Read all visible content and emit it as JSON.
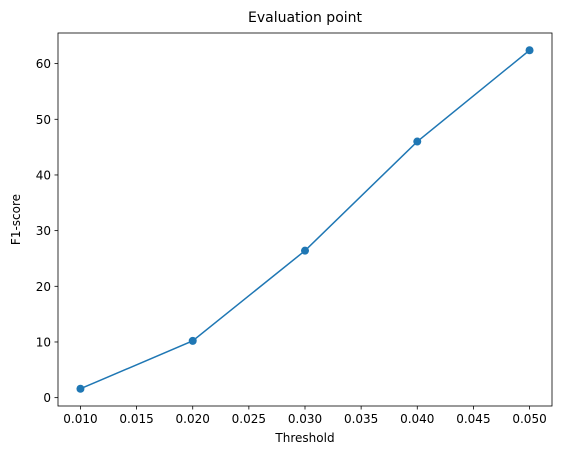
{
  "chart_data": {
    "type": "line",
    "title": "Evaluation point",
    "xlabel": "Threshold",
    "ylabel": "F1-score",
    "x": [
      0.01,
      0.02,
      0.03,
      0.04,
      0.05
    ],
    "series": [
      {
        "values": [
          1.6,
          10.2,
          26.4,
          46.0,
          62.4
        ],
        "color": "#1f77b4",
        "marker": "circle"
      }
    ],
    "xlim": [
      0.008,
      0.052
    ],
    "ylim": [
      -1.5,
      65.5
    ],
    "xticks": [
      0.01,
      0.015,
      0.02,
      0.025,
      0.03,
      0.035,
      0.04,
      0.045,
      0.05
    ],
    "xtick_labels": [
      "0.010",
      "0.015",
      "0.020",
      "0.025",
      "0.030",
      "0.035",
      "0.040",
      "0.045",
      "0.050"
    ],
    "yticks": [
      0,
      10,
      20,
      30,
      40,
      50,
      60
    ],
    "ytick_labels": [
      "0",
      "10",
      "20",
      "30",
      "40",
      "50",
      "60"
    ],
    "grid": false,
    "legend": false
  }
}
